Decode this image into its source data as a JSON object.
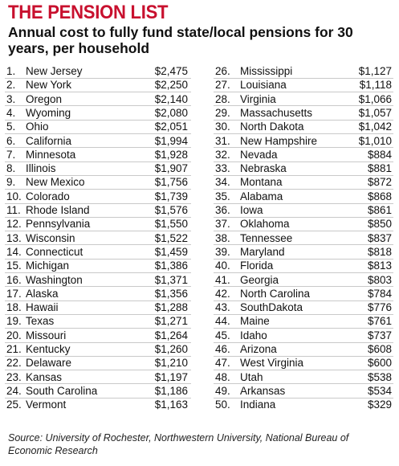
{
  "title": "THE PENSION LIST",
  "subtitle": "Annual cost to fully fund state/local pensions for 30 years, per household",
  "source": "Source: University of Rochester, Northwestern University, National Bureau of Economic Research",
  "colors": {
    "title": "#c8102e",
    "row_rule": "#c9c9c9"
  },
  "chart_data": {
    "type": "table",
    "title": "THE PENSION LIST",
    "subtitle": "Annual cost to fully fund state/local pensions for 30 years, per household",
    "rows": [
      {
        "rank": "1.",
        "state": "New Jersey",
        "cost": "$2,475"
      },
      {
        "rank": "2.",
        "state": "New York",
        "cost": "$2,250"
      },
      {
        "rank": "3.",
        "state": "Oregon",
        "cost": "$2,140"
      },
      {
        "rank": "4.",
        "state": "Wyoming",
        "cost": "$2,080"
      },
      {
        "rank": "5.",
        "state": "Ohio",
        "cost": "$2,051"
      },
      {
        "rank": "6.",
        "state": "California",
        "cost": "$1,994"
      },
      {
        "rank": "7.",
        "state": "Minnesota",
        "cost": "$1,928"
      },
      {
        "rank": "8.",
        "state": "Illinois",
        "cost": "$1,907"
      },
      {
        "rank": "9.",
        "state": "New Mexico",
        "cost": "$1,756"
      },
      {
        "rank": "10.",
        "state": "Colorado",
        "cost": "$1,739"
      },
      {
        "rank": "11.",
        "state": "Rhode Island",
        "cost": "$1,576"
      },
      {
        "rank": "12.",
        "state": "Pennsylvania",
        "cost": "$1,550"
      },
      {
        "rank": "13.",
        "state": "Wisconsin",
        "cost": "$1,522"
      },
      {
        "rank": "14.",
        "state": "Connecticut",
        "cost": "$1,459"
      },
      {
        "rank": "15.",
        "state": "Michigan",
        "cost": "$1,386"
      },
      {
        "rank": "16.",
        "state": "Washington",
        "cost": "$1,371"
      },
      {
        "rank": "17.",
        "state": "Alaska",
        "cost": "$1,356"
      },
      {
        "rank": "18.",
        "state": "Hawaii",
        "cost": "$1,288"
      },
      {
        "rank": "19.",
        "state": "Texas",
        "cost": "$1,271"
      },
      {
        "rank": "20.",
        "state": "Missouri",
        "cost": "$1,264"
      },
      {
        "rank": "21.",
        "state": "Kentucky",
        "cost": "$1,260"
      },
      {
        "rank": "22.",
        "state": "Delaware",
        "cost": "$1,210"
      },
      {
        "rank": "23.",
        "state": "Kansas",
        "cost": "$1,197"
      },
      {
        "rank": "24.",
        "state": "South Carolina",
        "cost": "$1,186"
      },
      {
        "rank": "25.",
        "state": "Vermont",
        "cost": "$1,163"
      },
      {
        "rank": "26.",
        "state": "Mississippi",
        "cost": "$1,127"
      },
      {
        "rank": "27.",
        "state": "Louisiana",
        "cost": "$1,118"
      },
      {
        "rank": "28.",
        "state": "Virginia",
        "cost": "$1,066"
      },
      {
        "rank": "29.",
        "state": "Massachusetts",
        "cost": "$1,057"
      },
      {
        "rank": "30.",
        "state": "North Dakota",
        "cost": "$1,042"
      },
      {
        "rank": "31.",
        "state": "New Hampshire",
        "cost": "$1,010"
      },
      {
        "rank": "32.",
        "state": "Nevada",
        "cost": "$884"
      },
      {
        "rank": "33.",
        "state": "Nebraska",
        "cost": "$881"
      },
      {
        "rank": "34.",
        "state": "Montana",
        "cost": "$872"
      },
      {
        "rank": "35.",
        "state": "Alabama",
        "cost": "$868"
      },
      {
        "rank": "36.",
        "state": "Iowa",
        "cost": "$861"
      },
      {
        "rank": "37.",
        "state": "Oklahoma",
        "cost": "$850"
      },
      {
        "rank": "38.",
        "state": "Tennessee",
        "cost": "$837"
      },
      {
        "rank": "39.",
        "state": "Maryland",
        "cost": "$818"
      },
      {
        "rank": "40.",
        "state": "Florida",
        "cost": "$813"
      },
      {
        "rank": "41.",
        "state": "Georgia",
        "cost": "$803"
      },
      {
        "rank": "42.",
        "state": "North Carolina",
        "cost": "$784"
      },
      {
        "rank": "43.",
        "state": "SouthDakota",
        "cost": "$776"
      },
      {
        "rank": "44.",
        "state": "Maine",
        "cost": "$761"
      },
      {
        "rank": "45.",
        "state": "Idaho",
        "cost": "$737"
      },
      {
        "rank": "46.",
        "state": "Arizona",
        "cost": "$608"
      },
      {
        "rank": "47.",
        "state": "West Virginia",
        "cost": "$600"
      },
      {
        "rank": "48.",
        "state": "Utah",
        "cost": "$538"
      },
      {
        "rank": "49.",
        "state": "Arkansas",
        "cost": "$534"
      },
      {
        "rank": "50.",
        "state": "Indiana",
        "cost": "$329"
      }
    ]
  }
}
